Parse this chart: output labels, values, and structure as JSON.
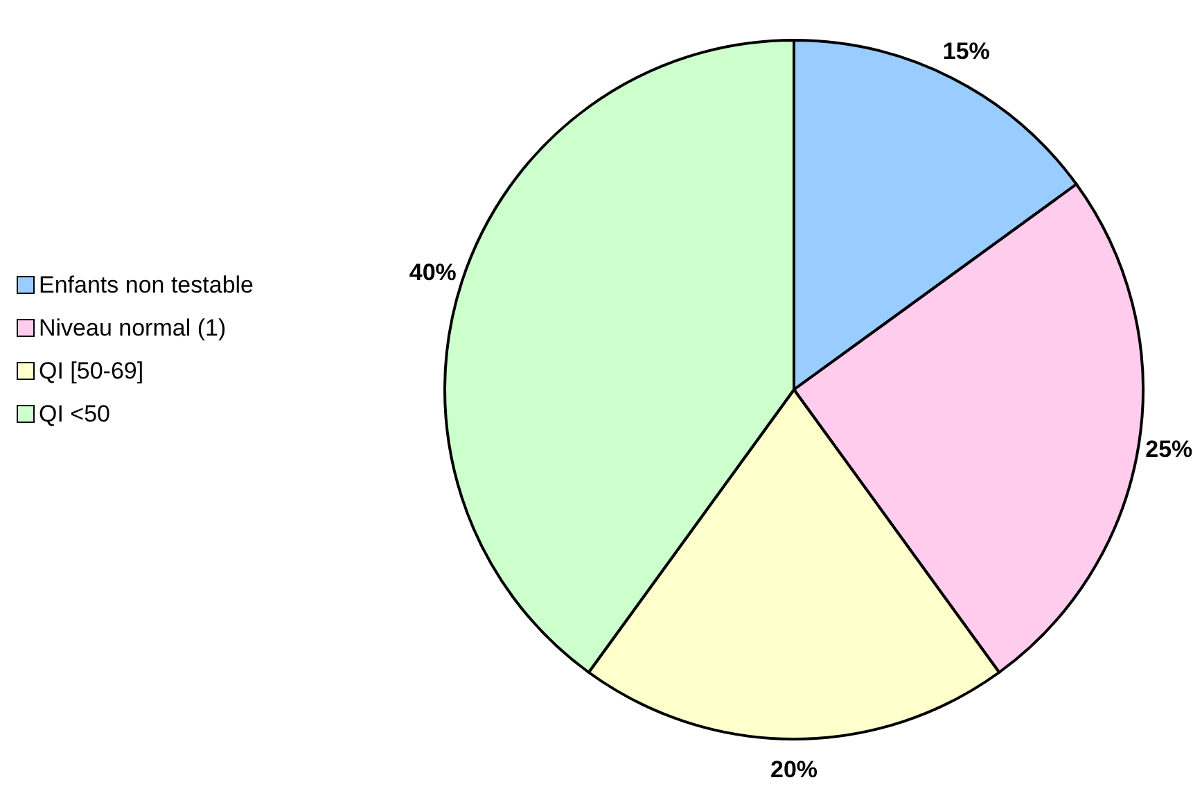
{
  "chart_data": {
    "type": "pie",
    "categories": [
      "Enfants non testable",
      "Niveau normal (1)",
      "QI [50-69]",
      "QI <50"
    ],
    "values": [
      15,
      25,
      20,
      40
    ],
    "colors": [
      "#99ccff",
      "#ffccee",
      "#ffffcc",
      "#ccffcc"
    ],
    "value_labels": [
      "15%",
      "25%",
      "20%",
      "40%"
    ],
    "legend": "left"
  }
}
